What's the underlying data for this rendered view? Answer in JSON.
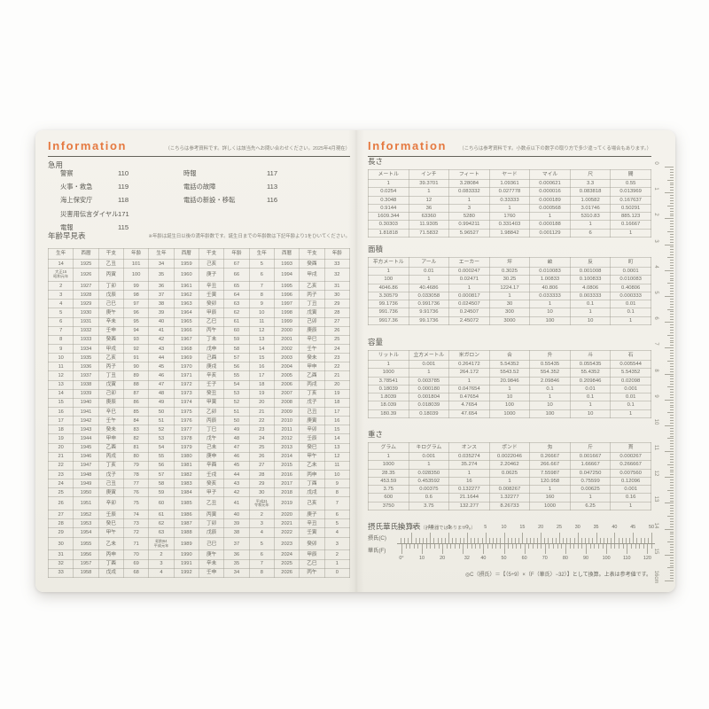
{
  "colors": {
    "page_cream": "#f1efe8",
    "accent_orange": "#e57940",
    "ink": "#5d5c55",
    "table_line": "#97948a"
  },
  "left_page": {
    "header": {
      "title": "Information",
      "note": "（こちらは参考資料です。詳しくは該当先へお問い合わせください。2025年4月現在）"
    },
    "emergency": {
      "title": "急用",
      "col1": [
        {
          "label": "警察",
          "number": "110"
        },
        {
          "label": "火事・救急",
          "number": "119"
        },
        {
          "label": "海上保安庁",
          "number": "118"
        },
        {
          "label": "災害用伝言ダイヤル",
          "number": "171"
        },
        {
          "label": "電報",
          "number": "115"
        }
      ],
      "col2": [
        {
          "label": "時報",
          "number": "117"
        },
        {
          "label": "電話の故障",
          "number": "113"
        },
        {
          "label": "電話の新設・移転",
          "number": "116"
        }
      ]
    },
    "age_table": {
      "title": "年齢早見表",
      "note": "※年齢は誕生日以後の満年齢数です。誕生日までの年齢数は下記年齢より1をひいてください。",
      "headers": [
        "生年",
        "西暦",
        "干支",
        "年齢",
        "生年",
        "西暦",
        "干支",
        "年齢",
        "生年",
        "西暦",
        "干支",
        "年齢"
      ],
      "rows": [
        [
          "14",
          "1925",
          "乙丑",
          "101",
          "34",
          "1959",
          "己亥",
          "67",
          "5",
          "1993",
          "癸酉",
          "33"
        ],
        [
          "大正15\n昭和元年",
          "1926",
          "丙寅",
          "100",
          "35",
          "1960",
          "庚子",
          "66",
          "6",
          "1994",
          "甲戌",
          "32"
        ],
        [
          "2",
          "1927",
          "丁卯",
          "99",
          "36",
          "1961",
          "辛丑",
          "65",
          "7",
          "1995",
          "乙亥",
          "31"
        ],
        [
          "3",
          "1928",
          "戊辰",
          "98",
          "37",
          "1962",
          "壬寅",
          "64",
          "8",
          "1996",
          "丙子",
          "30"
        ],
        [
          "4",
          "1929",
          "己巳",
          "97",
          "38",
          "1963",
          "癸卯",
          "63",
          "9",
          "1997",
          "丁丑",
          "29"
        ],
        [
          "5",
          "1930",
          "庚午",
          "96",
          "39",
          "1964",
          "甲辰",
          "62",
          "10",
          "1998",
          "戊寅",
          "28"
        ],
        [
          "6",
          "1931",
          "辛未",
          "95",
          "40",
          "1965",
          "乙巳",
          "61",
          "11",
          "1999",
          "己卯",
          "27"
        ],
        [
          "7",
          "1932",
          "壬申",
          "94",
          "41",
          "1966",
          "丙午",
          "60",
          "12",
          "2000",
          "庚辰",
          "26"
        ],
        [
          "8",
          "1933",
          "癸酉",
          "93",
          "42",
          "1967",
          "丁未",
          "59",
          "13",
          "2001",
          "辛巳",
          "25"
        ],
        [
          "9",
          "1934",
          "甲戌",
          "92",
          "43",
          "1968",
          "戊申",
          "58",
          "14",
          "2002",
          "壬午",
          "24"
        ],
        [
          "10",
          "1935",
          "乙亥",
          "91",
          "44",
          "1969",
          "己酉",
          "57",
          "15",
          "2003",
          "癸未",
          "23"
        ],
        [
          "11",
          "1936",
          "丙子",
          "90",
          "45",
          "1970",
          "庚戌",
          "56",
          "16",
          "2004",
          "甲申",
          "22"
        ],
        [
          "12",
          "1937",
          "丁丑",
          "89",
          "46",
          "1971",
          "辛亥",
          "55",
          "17",
          "2005",
          "乙酉",
          "21"
        ],
        [
          "13",
          "1938",
          "戊寅",
          "88",
          "47",
          "1972",
          "壬子",
          "54",
          "18",
          "2006",
          "丙戌",
          "20"
        ],
        [
          "14",
          "1939",
          "己卯",
          "87",
          "48",
          "1973",
          "癸丑",
          "53",
          "19",
          "2007",
          "丁亥",
          "19"
        ],
        [
          "15",
          "1940",
          "庚辰",
          "86",
          "49",
          "1974",
          "甲寅",
          "52",
          "20",
          "2008",
          "戊子",
          "18"
        ],
        [
          "16",
          "1941",
          "辛巳",
          "85",
          "50",
          "1975",
          "乙卯",
          "51",
          "21",
          "2009",
          "己丑",
          "17"
        ],
        [
          "17",
          "1942",
          "壬午",
          "84",
          "51",
          "1976",
          "丙辰",
          "50",
          "22",
          "2010",
          "庚寅",
          "16"
        ],
        [
          "18",
          "1943",
          "癸未",
          "83",
          "52",
          "1977",
          "丁巳",
          "49",
          "23",
          "2011",
          "辛卯",
          "15"
        ],
        [
          "19",
          "1944",
          "甲申",
          "82",
          "53",
          "1978",
          "戊午",
          "48",
          "24",
          "2012",
          "壬辰",
          "14"
        ],
        [
          "20",
          "1945",
          "乙酉",
          "81",
          "54",
          "1979",
          "己未",
          "47",
          "25",
          "2013",
          "癸巳",
          "13"
        ],
        [
          "21",
          "1946",
          "丙戌",
          "80",
          "55",
          "1980",
          "庚申",
          "46",
          "26",
          "2014",
          "甲午",
          "12"
        ],
        [
          "22",
          "1947",
          "丁亥",
          "79",
          "56",
          "1981",
          "辛酉",
          "45",
          "27",
          "2015",
          "乙未",
          "11"
        ],
        [
          "23",
          "1948",
          "戊子",
          "78",
          "57",
          "1982",
          "壬戌",
          "44",
          "28",
          "2016",
          "丙申",
          "10"
        ],
        [
          "24",
          "1949",
          "己丑",
          "77",
          "58",
          "1983",
          "癸亥",
          "43",
          "29",
          "2017",
          "丁酉",
          "9"
        ],
        [
          "25",
          "1950",
          "庚寅",
          "76",
          "59",
          "1984",
          "甲子",
          "42",
          "30",
          "2018",
          "戊戌",
          "8"
        ],
        [
          "26",
          "1951",
          "辛卯",
          "75",
          "60",
          "1985",
          "乙丑",
          "41",
          "平成31\n令和元年",
          "2019",
          "己亥",
          "7"
        ],
        [
          "27",
          "1952",
          "壬辰",
          "74",
          "61",
          "1986",
          "丙寅",
          "40",
          "2",
          "2020",
          "庚子",
          "6"
        ],
        [
          "28",
          "1953",
          "癸巳",
          "73",
          "62",
          "1987",
          "丁卯",
          "39",
          "3",
          "2021",
          "辛丑",
          "5"
        ],
        [
          "29",
          "1954",
          "甲午",
          "72",
          "63",
          "1988",
          "戊辰",
          "38",
          "4",
          "2022",
          "壬寅",
          "4"
        ],
        [
          "30",
          "1955",
          "乙未",
          "71",
          "昭和64\n平成元年",
          "1989",
          "己巳",
          "37",
          "5",
          "2023",
          "癸卯",
          "3"
        ],
        [
          "31",
          "1956",
          "丙申",
          "70",
          "2",
          "1990",
          "庚午",
          "36",
          "6",
          "2024",
          "甲辰",
          "2"
        ],
        [
          "32",
          "1957",
          "丁酉",
          "69",
          "3",
          "1991",
          "辛未",
          "35",
          "7",
          "2025",
          "乙巳",
          "1"
        ],
        [
          "33",
          "1958",
          "戊戌",
          "68",
          "4",
          "1992",
          "壬申",
          "34",
          "8",
          "2026",
          "丙午",
          "0"
        ]
      ]
    }
  },
  "right_page": {
    "header": {
      "title": "Information",
      "note": "（こちらは参考資料です。小数点以下の数字の取り方で多少違ってくる場合もあります。）"
    },
    "length_table": {
      "title": "長さ",
      "headers": [
        "メートル",
        "インチ",
        "フィート",
        "ヤード",
        "マイル",
        "尺",
        "間"
      ],
      "rows": [
        [
          "1",
          "39.3701",
          "3.28084",
          "1.09361",
          "0.000621",
          "3.3",
          "0.55"
        ],
        [
          "0.0254",
          "1",
          "0.083332",
          "0.027778",
          "0.000016",
          "0.083818",
          "0.013969"
        ],
        [
          "0.3048",
          "12",
          "1",
          "0.33333",
          "0.000189",
          "1.00582",
          "0.167637"
        ],
        [
          "0.9144",
          "36",
          "3",
          "1",
          "0.000568",
          "3.01746",
          "0.50291"
        ],
        [
          "1609.344",
          "63360",
          "5280",
          "1760",
          "1",
          "5310.83",
          "885.123"
        ],
        [
          "0.30303",
          "11.9305",
          "0.994211",
          "0.331403",
          "0.000188",
          "1",
          "0.16667"
        ],
        [
          "1.81818",
          "71.5832",
          "5.96527",
          "1.98842",
          "0.001129",
          "6",
          "1"
        ]
      ]
    },
    "area_table": {
      "title": "面積",
      "headers": [
        "平方メートル",
        "アール",
        "エーカー",
        "坪",
        "畝",
        "反",
        "町"
      ],
      "rows": [
        [
          "1",
          "0.01",
          "0.000247",
          "0.3025",
          "0.010083",
          "0.001008",
          "0.0001"
        ],
        [
          "100",
          "1",
          "0.02471",
          "30.25",
          "1.00833",
          "0.100833",
          "0.010083"
        ],
        [
          "4046.86",
          "40.4686",
          "1",
          "1224.17",
          "40.806",
          "4.0806",
          "0.40806"
        ],
        [
          "3.30579",
          "0.033058",
          "0.000817",
          "1",
          "0.033333",
          "0.003333",
          "0.000333"
        ],
        [
          "99.1736",
          "0.991736",
          "0.024507",
          "30",
          "1",
          "0.1",
          "0.01"
        ],
        [
          "991.736",
          "9.91736",
          "0.24507",
          "300",
          "10",
          "1",
          "0.1"
        ],
        [
          "9917.36",
          "99.1736",
          "2.45072",
          "3000",
          "100",
          "10",
          "1"
        ]
      ]
    },
    "capacity_table": {
      "title": "容量",
      "headers": [
        "リットル",
        "立方メートル",
        "米ガロン",
        "合",
        "升",
        "斗",
        "石"
      ],
      "rows": [
        [
          "1",
          "0.001",
          "0.264172",
          "5.54352",
          "0.55435",
          "0.055435",
          "0.005544"
        ],
        [
          "1000",
          "1",
          "264.172",
          "5543.52",
          "554.352",
          "55.4352",
          "5.54352"
        ],
        [
          "3.78541",
          "0.003785",
          "1",
          "20.9846",
          "2.09846",
          "0.209846",
          "0.02098"
        ],
        [
          "0.18039",
          "0.000180",
          "0.047654",
          "1",
          "0.1",
          "0.01",
          "0.001"
        ],
        [
          "1.8039",
          "0.001804",
          "0.47654",
          "10",
          "1",
          "0.1",
          "0.01"
        ],
        [
          "18.039",
          "0.018039",
          "4.7654",
          "100",
          "10",
          "1",
          "0.1"
        ],
        [
          "180.39",
          "0.18039",
          "47.654",
          "1000",
          "100",
          "10",
          "1"
        ]
      ]
    },
    "weight_table": {
      "title": "重さ",
      "headers": [
        "グラム",
        "キログラム",
        "オンス",
        "ポンド",
        "匁",
        "斤",
        "貫"
      ],
      "rows": [
        [
          "1",
          "0.001",
          "0.035274",
          "0.0022046",
          "0.26667",
          "0.001667",
          "0.000267"
        ],
        [
          "1000",
          "1",
          "35.274",
          "2.20462",
          "266.667",
          "1.66667",
          "0.266667"
        ],
        [
          "28.35",
          "0.028350",
          "1",
          "0.0625",
          "7.55987",
          "0.047250",
          "0.007560"
        ],
        [
          "453.59",
          "0.453592",
          "16",
          "1",
          "120.958",
          "0.75599",
          "0.12096"
        ],
        [
          "3.75",
          "0.00375",
          "0.132277",
          "0.008267",
          "1",
          "0.00625",
          "0.001"
        ],
        [
          "600",
          "0.6",
          "21.1644",
          "1.32277",
          "160",
          "1",
          "0.16"
        ],
        [
          "3750",
          "3.75",
          "132.277",
          "8.26733",
          "1000",
          "6.25",
          "1"
        ]
      ]
    },
    "temp_scale": {
      "title": "摂氏華氏換算表",
      "title_note": "（計量器ではありません）",
      "c_axis_label": "摂氏(C)",
      "f_axis_label": "華氏(F)",
      "c_min": -18,
      "c_max": 50,
      "c_labels": [
        [
          -18,
          "-18°"
        ],
        [
          -15,
          "-15"
        ],
        [
          -10,
          "-10"
        ],
        [
          -5,
          "-5"
        ],
        [
          0,
          "0"
        ],
        [
          5,
          "5"
        ],
        [
          10,
          "10"
        ],
        [
          15,
          "15"
        ],
        [
          20,
          "20"
        ],
        [
          25,
          "25"
        ],
        [
          30,
          "30"
        ],
        [
          35,
          "35"
        ],
        [
          40,
          "40"
        ],
        [
          45,
          "45"
        ],
        [
          50,
          "50"
        ]
      ],
      "f_labels": [
        [
          0,
          "0°"
        ],
        [
          10,
          "10"
        ],
        [
          20,
          "20"
        ],
        [
          32,
          "32"
        ],
        [
          40,
          "40"
        ],
        [
          50,
          "50"
        ],
        [
          60,
          "60"
        ],
        [
          70,
          "70"
        ],
        [
          80,
          "80"
        ],
        [
          90,
          "90"
        ],
        [
          100,
          "100"
        ],
        [
          110,
          "110"
        ],
        [
          120,
          "120"
        ]
      ],
      "formula_note": "◎C（摂氏）＝【（5÷9）×（F（華氏）−32）】として換算。上表は参考値です。"
    },
    "ruler": {
      "unit_labels": [
        "0",
        "1",
        "2",
        "3",
        "4",
        "5",
        "6",
        "7",
        "8",
        "9",
        "10",
        "11",
        "12",
        "13",
        "14",
        "15",
        "16cm"
      ]
    }
  }
}
